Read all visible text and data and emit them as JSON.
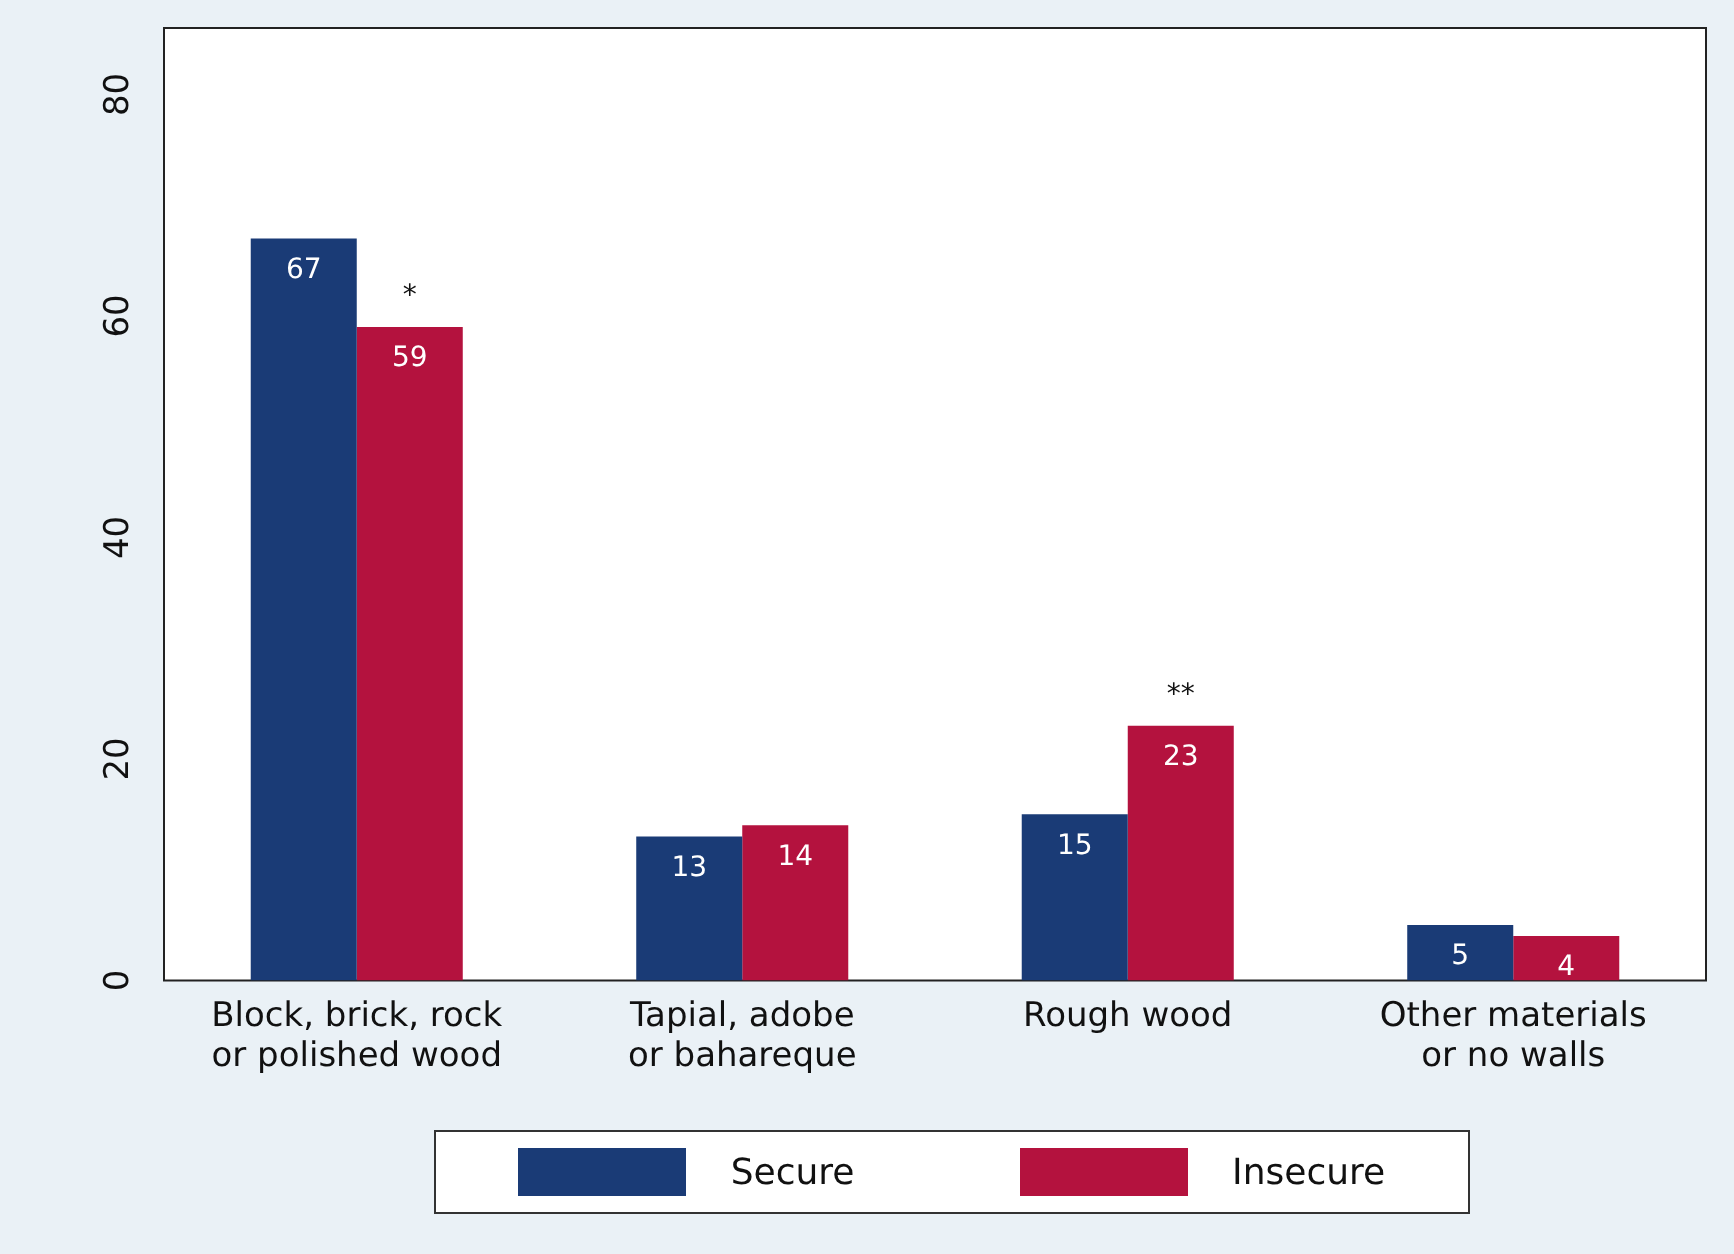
{
  "chart_data": {
    "type": "bar",
    "categories": [
      "Block, brick, rock\nor polished wood",
      "Tapial, adobe\nor bahareque",
      "Rough wood",
      "Other materials\nor no walls"
    ],
    "series": [
      {
        "name": "Secure",
        "color": "#1a3b76",
        "values": [
          67,
          13,
          15,
          5
        ]
      },
      {
        "name": "Insecure",
        "color": "#b4123e",
        "values": [
          59,
          14,
          23,
          4
        ]
      }
    ],
    "ylim": [
      0,
      86
    ],
    "yticks": [
      0,
      20,
      40,
      60,
      80
    ],
    "data_labels": true,
    "grid": false,
    "legend": "bottom",
    "annotations": [
      {
        "text": "*",
        "x": "Block, brick, rock\nor polished wood",
        "y": 59
      },
      {
        "text": "**",
        "x": "Rough wood",
        "y": 23
      }
    ]
  }
}
